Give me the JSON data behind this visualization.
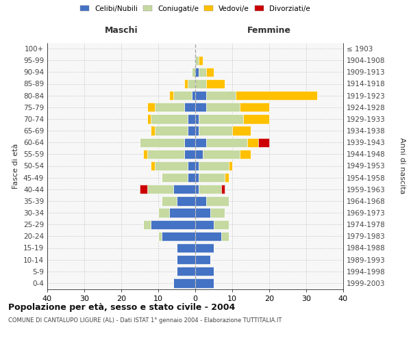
{
  "age_groups": [
    "0-4",
    "5-9",
    "10-14",
    "15-19",
    "20-24",
    "25-29",
    "30-34",
    "35-39",
    "40-44",
    "45-49",
    "50-54",
    "55-59",
    "60-64",
    "65-69",
    "70-74",
    "75-79",
    "80-84",
    "85-89",
    "90-94",
    "95-99",
    "100+"
  ],
  "birth_years": [
    "1999-2003",
    "1994-1998",
    "1989-1993",
    "1984-1988",
    "1979-1983",
    "1974-1978",
    "1969-1973",
    "1964-1968",
    "1959-1963",
    "1954-1958",
    "1949-1953",
    "1944-1948",
    "1939-1943",
    "1934-1938",
    "1929-1933",
    "1924-1928",
    "1919-1923",
    "1914-1918",
    "1909-1913",
    "1904-1908",
    "≤ 1903"
  ],
  "colors": {
    "celibi": "#4472c4",
    "coniugati": "#c5d9a0",
    "vedovi": "#ffc000",
    "divorziati": "#cc0000"
  },
  "maschi": {
    "celibi": [
      6,
      5,
      5,
      5,
      9,
      12,
      7,
      5,
      6,
      2,
      2,
      3,
      3,
      2,
      2,
      3,
      1,
      0,
      0,
      0,
      0
    ],
    "coniugati": [
      0,
      0,
      0,
      0,
      1,
      2,
      3,
      4,
      7,
      7,
      9,
      10,
      12,
      9,
      10,
      8,
      5,
      2,
      1,
      0,
      0
    ],
    "vedovi": [
      0,
      0,
      0,
      0,
      0,
      0,
      0,
      0,
      0,
      0,
      1,
      1,
      0,
      1,
      1,
      2,
      1,
      1,
      0,
      0,
      0
    ],
    "divorziati": [
      0,
      0,
      0,
      0,
      0,
      0,
      0,
      0,
      2,
      0,
      0,
      0,
      0,
      0,
      0,
      0,
      0,
      0,
      0,
      0,
      0
    ]
  },
  "femmine": {
    "celibi": [
      5,
      5,
      4,
      5,
      7,
      5,
      4,
      3,
      1,
      1,
      1,
      2,
      3,
      1,
      1,
      3,
      3,
      0,
      1,
      0,
      0
    ],
    "coniugati": [
      0,
      0,
      0,
      0,
      2,
      4,
      4,
      6,
      6,
      7,
      8,
      10,
      11,
      9,
      12,
      9,
      8,
      3,
      2,
      1,
      0
    ],
    "vedovi": [
      0,
      0,
      0,
      0,
      0,
      0,
      0,
      0,
      0,
      1,
      1,
      3,
      3,
      5,
      7,
      8,
      22,
      5,
      2,
      1,
      0
    ],
    "divorziati": [
      0,
      0,
      0,
      0,
      0,
      0,
      0,
      0,
      1,
      0,
      0,
      0,
      3,
      0,
      0,
      0,
      0,
      0,
      0,
      0,
      0
    ]
  },
  "xlim": 40,
  "title": "Popolazione per età, sesso e stato civile - 2004",
  "subtitle": "COMUNE DI CANTALUPO LIGURE (AL) - Dati ISTAT 1° gennaio 2004 - Elaborazione TUTTITALIA.IT",
  "ylabel_left": "Fasce di età",
  "ylabel_right": "Anni di nascita",
  "label_maschi": "Maschi",
  "label_femmine": "Femmine",
  "legend_labels": [
    "Celibi/Nubili",
    "Coniugati/e",
    "Vedovi/e",
    "Divorziati/e"
  ],
  "legend_colors": [
    "#4472c4",
    "#c5d9a0",
    "#ffc000",
    "#cc0000"
  ],
  "bg_color": "#f7f7f7",
  "grid_color": "#cccccc"
}
